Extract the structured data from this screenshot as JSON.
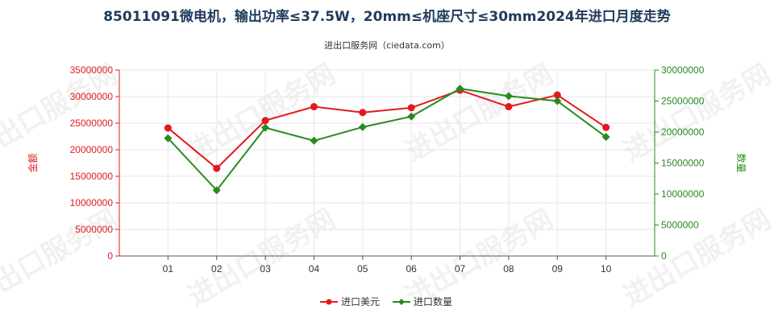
{
  "chart_data": {
    "type": "line",
    "title": "85011091微电机，输出功率≤37.5W，20mm≤机座尺寸≤30mm2024年进口月度走势",
    "subtitle": "进出口服务网（ciedata.com）",
    "categories": [
      "01",
      "02",
      "03",
      "04",
      "05",
      "06",
      "07",
      "08",
      "09",
      "10"
    ],
    "y_left": {
      "label": "金额",
      "range": [
        0,
        35000000
      ],
      "ticks": [
        "0",
        "5000000",
        "10000000",
        "15000000",
        "20000000",
        "25000000",
        "30000000",
        "35000000"
      ],
      "color": "#e31a1c"
    },
    "y_right": {
      "label": "数量",
      "range": [
        0,
        30000000
      ],
      "ticks": [
        "0",
        "5000000",
        "10000000",
        "15000000",
        "20000000",
        "25000000",
        "30000000"
      ],
      "color": "#2a8a1f"
    },
    "series": [
      {
        "name": "进口美元",
        "axis": "left",
        "color": "#e31a1c",
        "values": [
          24100000,
          16500000,
          25500000,
          28100000,
          27000000,
          27900000,
          31200000,
          28100000,
          30300000,
          24200000
        ]
      },
      {
        "name": "进口数量",
        "axis": "right",
        "color": "#2a8a1f",
        "values": [
          19000000,
          10600000,
          20700000,
          18600000,
          20800000,
          22500000,
          27000000,
          25800000,
          25000000,
          19200000
        ]
      }
    ],
    "grid": true,
    "legend": "bottom-center",
    "watermark": "进出口服务网"
  }
}
